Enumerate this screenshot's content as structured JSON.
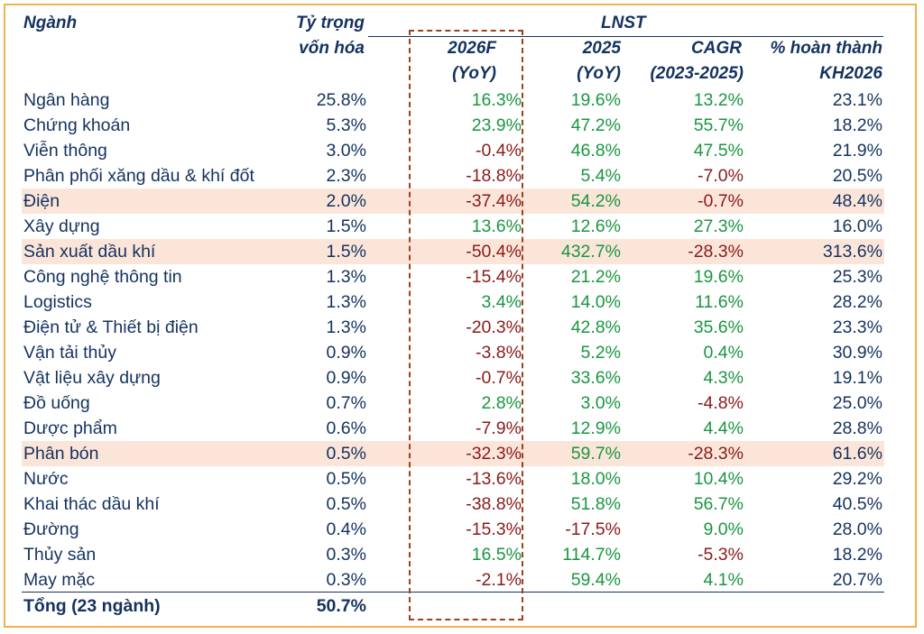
{
  "header": {
    "nganh": "Ngành",
    "ty_trong_line1": "Tỷ trọng",
    "ty_trong_line2": "vốn hóa",
    "lnst": "LNST",
    "col_2026f_line1": "2026F",
    "col_2026f_line2": "(YoY)",
    "col_2025_line1": "2025",
    "col_2025_line2": "(YoY)",
    "col_cagr_line1": "CAGR",
    "col_cagr_line2": "(2023-2025)",
    "col_kh_line1": "% hoàn thành",
    "col_kh_line2": "KH2026"
  },
  "rows": [
    {
      "name": "Ngân hàng",
      "weight": "25.8%",
      "f2026": "16.3%",
      "y2025": "19.6%",
      "cagr": "13.2%",
      "kh": "23.1%",
      "highlight": false
    },
    {
      "name": "Chứng khoán",
      "weight": "5.3%",
      "f2026": "23.9%",
      "y2025": "47.2%",
      "cagr": "55.7%",
      "kh": "18.2%",
      "highlight": false
    },
    {
      "name": "Viễn thông",
      "weight": "3.0%",
      "f2026": "-0.4%",
      "y2025": "46.8%",
      "cagr": "47.5%",
      "kh": "21.9%",
      "highlight": false
    },
    {
      "name": "Phân phối xăng dầu & khí đốt",
      "weight": "2.3%",
      "f2026": "-18.8%",
      "y2025": "5.4%",
      "cagr": "-7.0%",
      "kh": "20.5%",
      "highlight": false
    },
    {
      "name": "Điện",
      "weight": "2.0%",
      "f2026": "-37.4%",
      "y2025": "54.2%",
      "cagr": "-0.7%",
      "kh": "48.4%",
      "highlight": true
    },
    {
      "name": "Xây dựng",
      "weight": "1.5%",
      "f2026": "13.6%",
      "y2025": "12.6%",
      "cagr": "27.3%",
      "kh": "16.0%",
      "highlight": false
    },
    {
      "name": "Sản xuất dầu khí",
      "weight": "1.5%",
      "f2026": "-50.4%",
      "y2025": "432.7%",
      "cagr": "-28.3%",
      "kh": "313.6%",
      "highlight": true
    },
    {
      "name": "Công nghệ thông tin",
      "weight": "1.3%",
      "f2026": "-15.4%",
      "y2025": "21.2%",
      "cagr": "19.6%",
      "kh": "25.3%",
      "highlight": false
    },
    {
      "name": "Logistics",
      "weight": "1.3%",
      "f2026": "3.4%",
      "y2025": "14.0%",
      "cagr": "11.6%",
      "kh": "28.2%",
      "highlight": false
    },
    {
      "name": "Điện tử & Thiết bị điện",
      "weight": "1.3%",
      "f2026": "-20.3%",
      "y2025": "42.8%",
      "cagr": "35.6%",
      "kh": "23.3%",
      "highlight": false
    },
    {
      "name": "Vận tải thủy",
      "weight": "0.9%",
      "f2026": "-3.8%",
      "y2025": "5.2%",
      "cagr": "0.4%",
      "kh": "30.9%",
      "highlight": false
    },
    {
      "name": "Vật liệu xây dựng",
      "weight": "0.9%",
      "f2026": "-0.7%",
      "y2025": "33.6%",
      "cagr": "4.3%",
      "kh": "19.1%",
      "highlight": false
    },
    {
      "name": "Đồ uống",
      "weight": "0.7%",
      "f2026": "2.8%",
      "y2025": "3.0%",
      "cagr": "-4.8%",
      "kh": "25.0%",
      "highlight": false
    },
    {
      "name": "Dược phẩm",
      "weight": "0.6%",
      "f2026": "-7.9%",
      "y2025": "12.9%",
      "cagr": "4.4%",
      "kh": "28.8%",
      "highlight": false
    },
    {
      "name": "Phân bón",
      "weight": "0.5%",
      "f2026": "-32.3%",
      "y2025": "59.7%",
      "cagr": "-28.3%",
      "kh": "61.6%",
      "highlight": true
    },
    {
      "name": "Nước",
      "weight": "0.5%",
      "f2026": "-13.6%",
      "y2025": "18.0%",
      "cagr": "10.4%",
      "kh": "29.2%",
      "highlight": false
    },
    {
      "name": "Khai thác dầu khí",
      "weight": "0.5%",
      "f2026": "-38.8%",
      "y2025": "51.8%",
      "cagr": "56.7%",
      "kh": "40.5%",
      "highlight": false
    },
    {
      "name": "Đường",
      "weight": "0.4%",
      "f2026": "-15.3%",
      "y2025": "-17.5%",
      "cagr": "9.0%",
      "kh": "28.0%",
      "highlight": false
    },
    {
      "name": "Thủy sản",
      "weight": "0.3%",
      "f2026": "16.5%",
      "y2025": "114.7%",
      "cagr": "-5.3%",
      "kh": "18.2%",
      "highlight": false
    },
    {
      "name": "May mặc",
      "weight": "0.3%",
      "f2026": "-2.1%",
      "y2025": "59.4%",
      "cagr": "4.1%",
      "kh": "20.7%",
      "highlight": false
    }
  ],
  "total": {
    "name": "Tổng (23 ngành)",
    "weight": "50.7%"
  },
  "colors": {
    "positive": "#1a9641",
    "negative": "#8b1a1a",
    "text": "#14325f",
    "highlight": "#fbe5d9",
    "frame": "#f0b24b",
    "dashed_box": "#a0401c"
  }
}
